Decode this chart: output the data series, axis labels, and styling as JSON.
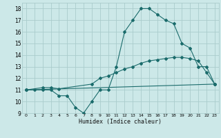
{
  "title": "",
  "xlabel": "Humidex (Indice chaleur)",
  "xlim": [
    -0.5,
    23.5
  ],
  "ylim": [
    9,
    18.5
  ],
  "yticks": [
    9,
    10,
    11,
    12,
    13,
    14,
    15,
    16,
    17,
    18
  ],
  "xticks": [
    0,
    1,
    2,
    3,
    4,
    5,
    6,
    7,
    8,
    9,
    10,
    11,
    12,
    13,
    14,
    15,
    16,
    17,
    18,
    19,
    20,
    21,
    22,
    23
  ],
  "bg_color": "#cce8e8",
  "grid_color": "#aacccc",
  "line_color": "#1a6b6b",
  "series": [
    {
      "x": [
        0,
        1,
        2,
        3,
        4,
        5,
        6,
        7,
        8,
        9,
        10,
        11,
        12,
        13,
        14,
        15,
        16,
        17,
        18,
        19,
        20,
        21,
        22,
        23
      ],
      "y": [
        11,
        11,
        11,
        11,
        10.5,
        10.5,
        9.5,
        9,
        10,
        11,
        11,
        13,
        16,
        17,
        18,
        18,
        17.5,
        17,
        16.7,
        15,
        14.6,
        13,
        13,
        11.5
      ]
    },
    {
      "x": [
        0,
        2,
        3,
        4,
        8,
        9,
        10,
        11,
        12,
        13,
        14,
        15,
        16,
        17,
        18,
        19,
        20,
        21,
        22,
        23
      ],
      "y": [
        11,
        11.2,
        11.2,
        11.1,
        11.5,
        12.0,
        12.2,
        12.5,
        12.8,
        13.0,
        13.3,
        13.5,
        13.6,
        13.7,
        13.8,
        13.8,
        13.7,
        13.5,
        12.5,
        11.5
      ]
    },
    {
      "x": [
        0,
        23
      ],
      "y": [
        11,
        11.5
      ]
    }
  ]
}
